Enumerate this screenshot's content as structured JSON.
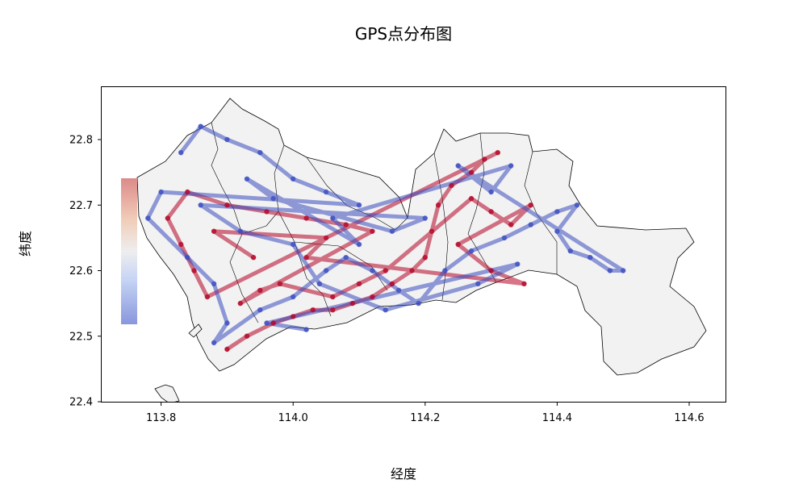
{
  "chart_data": {
    "type": "scatter",
    "title": "GPS点分布图",
    "xlabel": "经度",
    "ylabel": "纬度",
    "xlim": [
      113.71,
      114.655
    ],
    "ylim": [
      22.4,
      22.88
    ],
    "x_ticks": [
      "113.8",
      "114.0",
      "114.2",
      "114.4",
      "114.6"
    ],
    "y_ticks": [
      "22.4",
      "22.5",
      "22.6",
      "22.7",
      "22.8"
    ],
    "colormap": "coolwarm",
    "colorbar_placement": "left, inside axes",
    "grid": false,
    "series": [
      {
        "color": "#b40426",
        "points": [
          [
            113.9,
            22.48
          ],
          [
            113.93,
            22.5
          ],
          [
            113.97,
            22.52
          ],
          [
            114.0,
            22.53
          ],
          [
            114.03,
            22.54
          ],
          [
            114.06,
            22.54
          ],
          [
            114.09,
            22.55
          ],
          [
            114.12,
            22.56
          ],
          [
            114.15,
            22.58
          ],
          [
            114.18,
            22.6
          ],
          [
            114.2,
            22.62
          ],
          [
            114.21,
            22.66
          ],
          [
            114.22,
            22.7
          ],
          [
            114.24,
            22.73
          ],
          [
            114.27,
            22.75
          ],
          [
            114.29,
            22.77
          ],
          [
            114.31,
            22.78
          ],
          [
            113.87,
            22.56
          ],
          [
            113.85,
            22.6
          ],
          [
            113.83,
            22.64
          ],
          [
            113.81,
            22.68
          ],
          [
            113.84,
            22.72
          ],
          [
            113.9,
            22.7
          ],
          [
            113.96,
            22.69
          ],
          [
            114.02,
            22.68
          ],
          [
            114.08,
            22.67
          ],
          [
            114.12,
            22.66
          ],
          [
            113.92,
            22.55
          ],
          [
            113.95,
            22.57
          ],
          [
            113.98,
            22.58
          ],
          [
            114.06,
            22.56
          ],
          [
            114.1,
            22.58
          ],
          [
            114.14,
            22.6
          ],
          [
            114.27,
            22.71
          ],
          [
            114.3,
            22.69
          ],
          [
            114.33,
            22.67
          ],
          [
            114.36,
            22.7
          ],
          [
            114.25,
            22.64
          ],
          [
            114.3,
            22.6
          ],
          [
            114.35,
            22.58
          ],
          [
            114.02,
            22.62
          ],
          [
            114.05,
            22.65
          ],
          [
            113.88,
            22.66
          ],
          [
            113.94,
            22.62
          ]
        ]
      },
      {
        "color": "#3b4cc0",
        "points": [
          [
            113.83,
            22.78
          ],
          [
            113.86,
            22.82
          ],
          [
            113.9,
            22.8
          ],
          [
            113.95,
            22.78
          ],
          [
            114.0,
            22.74
          ],
          [
            114.05,
            22.72
          ],
          [
            114.1,
            22.7
          ],
          [
            113.8,
            22.72
          ],
          [
            113.78,
            22.68
          ],
          [
            113.84,
            22.62
          ],
          [
            113.88,
            22.58
          ],
          [
            113.9,
            22.52
          ],
          [
            113.88,
            22.49
          ],
          [
            113.95,
            22.54
          ],
          [
            114.0,
            22.56
          ],
          [
            114.05,
            22.6
          ],
          [
            114.08,
            22.62
          ],
          [
            114.12,
            22.6
          ],
          [
            114.16,
            22.57
          ],
          [
            114.19,
            22.55
          ],
          [
            114.23,
            22.6
          ],
          [
            114.27,
            22.63
          ],
          [
            114.32,
            22.65
          ],
          [
            114.36,
            22.67
          ],
          [
            114.4,
            22.69
          ],
          [
            114.43,
            22.7
          ],
          [
            114.4,
            22.66
          ],
          [
            114.42,
            22.63
          ],
          [
            114.45,
            22.62
          ],
          [
            114.48,
            22.6
          ],
          [
            114.5,
            22.6
          ],
          [
            114.25,
            22.76
          ],
          [
            114.3,
            22.72
          ],
          [
            114.33,
            22.76
          ],
          [
            114.06,
            22.68
          ],
          [
            114.1,
            22.64
          ],
          [
            113.93,
            22.74
          ],
          [
            113.97,
            22.71
          ],
          [
            114.15,
            22.66
          ],
          [
            114.2,
            22.68
          ],
          [
            113.86,
            22.7
          ],
          [
            113.92,
            22.66
          ],
          [
            114.0,
            22.64
          ],
          [
            114.04,
            22.58
          ],
          [
            114.14,
            22.54
          ],
          [
            114.28,
            22.58
          ],
          [
            114.34,
            22.61
          ],
          [
            113.96,
            22.52
          ],
          [
            114.02,
            22.51
          ]
        ]
      }
    ]
  }
}
